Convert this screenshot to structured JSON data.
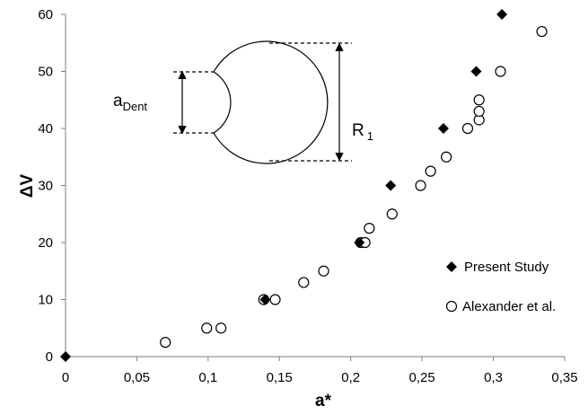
{
  "chart_data": {
    "type": "scatter",
    "xlabel": "a*",
    "ylabel": "ΔV",
    "xlim": [
      0,
      0.35
    ],
    "ylim": [
      0,
      60
    ],
    "xticks": [
      "0",
      "0,05",
      "0,1",
      "0,15",
      "0,2",
      "0,25",
      "0,3",
      "0,35"
    ],
    "yticks": [
      "0",
      "10",
      "20",
      "30",
      "40",
      "50",
      "60"
    ],
    "grid": false,
    "legend_position": "bottom-right",
    "series": [
      {
        "name": "Present Study",
        "marker": "diamond",
        "color": "#000000",
        "points": [
          {
            "x": 0,
            "y": 0
          },
          {
            "x": 0.14,
            "y": 10
          },
          {
            "x": 0.206,
            "y": 20
          },
          {
            "x": 0.228,
            "y": 30
          },
          {
            "x": 0.265,
            "y": 40
          },
          {
            "x": 0.288,
            "y": 50
          },
          {
            "x": 0.306,
            "y": 60
          }
        ]
      },
      {
        "name": "Alexander et al.",
        "marker": "circle",
        "color": "#000000",
        "points": [
          {
            "x": 0.07,
            "y": 2.5
          },
          {
            "x": 0.099,
            "y": 5
          },
          {
            "x": 0.109,
            "y": 5
          },
          {
            "x": 0.139,
            "y": 10
          },
          {
            "x": 0.147,
            "y": 10
          },
          {
            "x": 0.167,
            "y": 13
          },
          {
            "x": 0.181,
            "y": 15
          },
          {
            "x": 0.207,
            "y": 20
          },
          {
            "x": 0.21,
            "y": 20
          },
          {
            "x": 0.213,
            "y": 22.5
          },
          {
            "x": 0.229,
            "y": 25
          },
          {
            "x": 0.249,
            "y": 30
          },
          {
            "x": 0.256,
            "y": 32.5
          },
          {
            "x": 0.267,
            "y": 35
          },
          {
            "x": 0.282,
            "y": 40
          },
          {
            "x": 0.29,
            "y": 41.5
          },
          {
            "x": 0.29,
            "y": 43
          },
          {
            "x": 0.29,
            "y": 45
          },
          {
            "x": 0.305,
            "y": 50
          },
          {
            "x": 0.334,
            "y": 57
          }
        ]
      }
    ],
    "inset": {
      "dent_label_main": "a",
      "dent_label_sub": "Dent",
      "radius_label_main": "R",
      "radius_label_sub": "1"
    }
  }
}
